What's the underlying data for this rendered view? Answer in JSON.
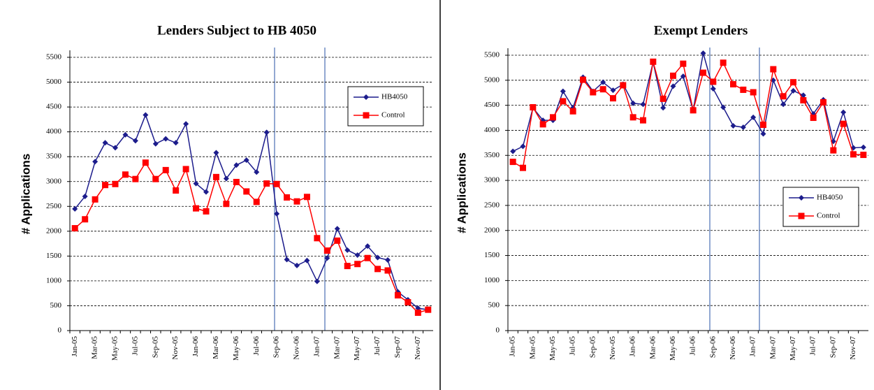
{
  "chart_data": [
    {
      "type": "line",
      "title": "Lenders Subject to HB 4050",
      "y_label": "# Applications",
      "categories": [
        "Jan-05",
        null,
        "Mar-05",
        null,
        "May-05",
        null,
        "Jul-05",
        null,
        "Sep-05",
        null,
        "Nov-05",
        null,
        "Jan-06",
        null,
        "Mar-06",
        null,
        "May-06",
        null,
        "Jul-06",
        null,
        "Sep-06",
        null,
        "Nov-06",
        null,
        "Jan-07",
        null,
        "Mar-07",
        null,
        "May-07",
        null,
        "Jul-07",
        null,
        "Sep-07",
        null,
        "Nov-07",
        null
      ],
      "series": [
        {
          "name": "HB4050",
          "color": "#1c1c8c",
          "marker": "diamond",
          "values": [
            2450,
            2700,
            3400,
            3780,
            3680,
            3940,
            3820,
            4340,
            3760,
            3860,
            3780,
            4160,
            2960,
            2790,
            3580,
            3060,
            3330,
            3430,
            3190,
            3990,
            2350,
            1430,
            1310,
            1410,
            990,
            1460,
            2050,
            1620,
            1520,
            1700,
            1470,
            1420,
            780,
            620,
            450,
            420
          ]
        },
        {
          "name": "Control",
          "color": "#ff0000",
          "marker": "square",
          "values": [
            2060,
            2240,
            2640,
            2930,
            2950,
            3140,
            3050,
            3380,
            3050,
            3230,
            2820,
            3250,
            2460,
            2400,
            3090,
            2550,
            2990,
            2800,
            2590,
            2960,
            2950,
            2680,
            2600,
            2690,
            1860,
            1610,
            1810,
            1300,
            1340,
            1460,
            1240,
            1210,
            710,
            570,
            360,
            420
          ]
        }
      ],
      "ylim": [
        0,
        5500
      ],
      "yticks": [
        0,
        500,
        1000,
        1500,
        2000,
        2500,
        3000,
        3500,
        4000,
        4500,
        5000,
        5500
      ],
      "grid": true,
      "legend": "upper right"
    },
    {
      "type": "line",
      "title": "Exempt Lenders",
      "y_label": "# Applications",
      "categories": [
        "Jan-05",
        null,
        "Mar-05",
        null,
        "May-05",
        null,
        "Jul-05",
        null,
        "Sep-05",
        null,
        "Nov-05",
        null,
        "Jan-06",
        null,
        "Mar-06",
        null,
        "May-06",
        null,
        "Jul-06",
        null,
        "Sep-06",
        null,
        "Nov-06",
        null,
        "Jan-07",
        null,
        "Mar-07",
        null,
        "May-07",
        null,
        "Jul-07",
        null,
        "Sep-07",
        null,
        "Nov-07",
        null
      ],
      "series": [
        {
          "name": "HB4050",
          "color": "#1c1c8c",
          "marker": "diamond",
          "values": [
            3580,
            3680,
            4450,
            4200,
            4200,
            4780,
            4450,
            5060,
            4780,
            4960,
            4800,
            4920,
            4540,
            4520,
            5360,
            4450,
            4880,
            5080,
            4400,
            5540,
            4830,
            4460,
            4090,
            4060,
            4260,
            3930,
            5000,
            4520,
            4790,
            4700,
            4330,
            4610,
            3780,
            4360,
            3650,
            3660
          ]
        },
        {
          "name": "Control",
          "color": "#ff0000",
          "marker": "square",
          "values": [
            3370,
            3250,
            4460,
            4120,
            4260,
            4580,
            4380,
            5010,
            4760,
            4820,
            4640,
            4900,
            4260,
            4200,
            5370,
            4630,
            5090,
            5330,
            4400,
            5150,
            4970,
            5350,
            4920,
            4810,
            4760,
            4110,
            5220,
            4680,
            4960,
            4600,
            4250,
            4560,
            3600,
            4130,
            3520,
            3510
          ]
        }
      ],
      "ylim": [
        0,
        5500
      ],
      "yticks": [
        0,
        500,
        1000,
        1500,
        2000,
        2500,
        3000,
        3500,
        4000,
        4500,
        5000,
        5500
      ],
      "grid": true,
      "legend": "center right"
    }
  ]
}
